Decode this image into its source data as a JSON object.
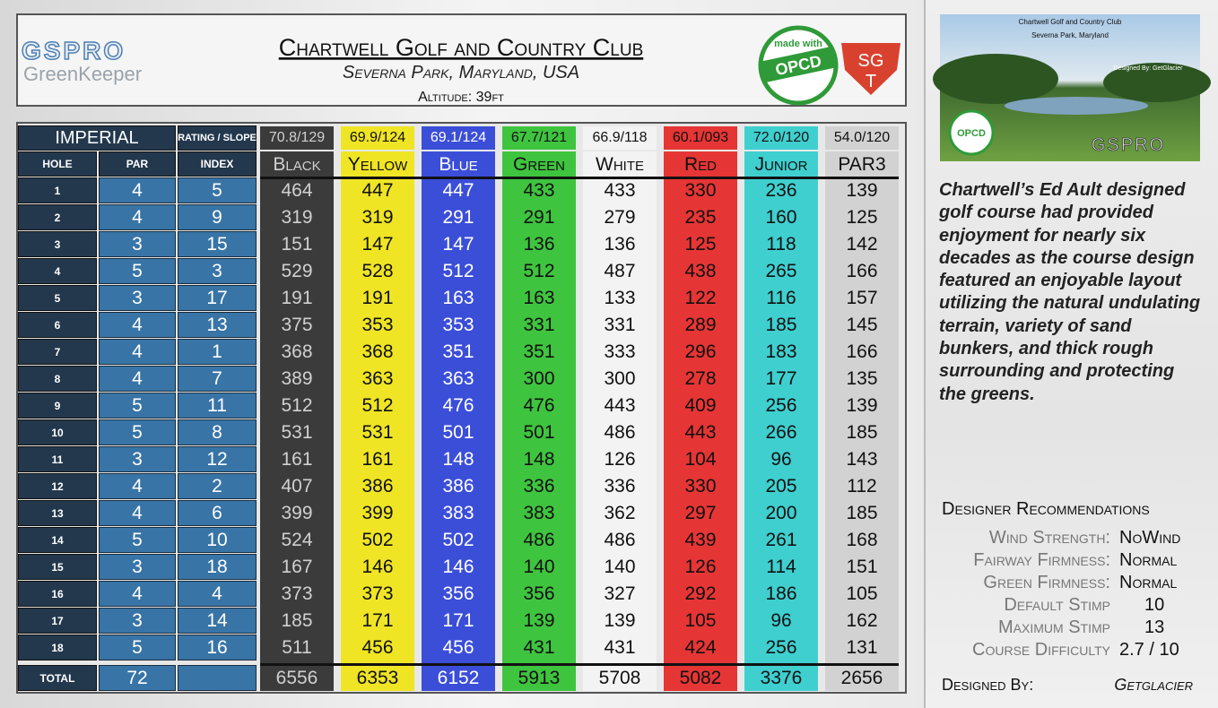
{
  "header": {
    "logo": "GSPRO",
    "logo_sub": "GreenKeeper",
    "title": "Chartwell Golf and Country Club",
    "subtitle": "Severna Park, Maryland, USA",
    "altitude": "Altitude: 39ft",
    "badge_top": "made with",
    "badge": "OPCD",
    "sgt_top": "SG",
    "sgt_bottom": "T"
  },
  "photo": {
    "title": "Chartwell Golf and Country Club",
    "subtitle": "Severna Park, Maryland",
    "credit": "Designed By: GetGlacier",
    "brand": "GSPRO",
    "badge": "OPCD"
  },
  "table": {
    "system": "IMPERIAL",
    "rating_label": "RATING / SLOPE",
    "hole_label": "HOLE",
    "par_label": "PAR",
    "index_label": "INDEX",
    "total_label": "TOTAL",
    "par_total": 72,
    "holes": [
      1,
      2,
      3,
      4,
      5,
      6,
      7,
      8,
      9,
      10,
      11,
      12,
      13,
      14,
      15,
      16,
      17,
      18
    ],
    "par": [
      4,
      4,
      3,
      5,
      3,
      4,
      4,
      4,
      5,
      5,
      3,
      4,
      4,
      5,
      3,
      4,
      3,
      5
    ],
    "index": [
      5,
      9,
      15,
      3,
      17,
      13,
      1,
      7,
      11,
      8,
      12,
      2,
      6,
      10,
      18,
      4,
      14,
      16
    ],
    "tees": [
      {
        "name": "Black",
        "rating": "70.8/129",
        "color": "#3b3b3b",
        "text": "#d0d0d0",
        "head": "#3b3b3b",
        "yards": [
          464,
          319,
          151,
          529,
          191,
          375,
          368,
          389,
          512,
          531,
          161,
          407,
          399,
          524,
          167,
          373,
          185,
          511
        ],
        "total": 6556
      },
      {
        "name": "Yellow",
        "rating": "69.9/124",
        "color": "#efe525",
        "text": "#111111",
        "head": "#efe525",
        "yards": [
          447,
          319,
          147,
          528,
          191,
          353,
          368,
          363,
          512,
          531,
          161,
          386,
          399,
          502,
          146,
          373,
          171,
          456
        ],
        "total": 6353
      },
      {
        "name": "Blue",
        "rating": "69.1/124",
        "color": "#3b4ed8",
        "text": "#ffffff",
        "head": "#3b4ed8",
        "yards": [
          447,
          291,
          147,
          512,
          163,
          353,
          351,
          363,
          476,
          501,
          148,
          386,
          383,
          502,
          146,
          356,
          171,
          456
        ],
        "total": 6152
      },
      {
        "name": "Green",
        "rating": "67.7/121",
        "color": "#3fc43f",
        "text": "#111111",
        "head": "#3fc43f",
        "yards": [
          433,
          291,
          136,
          512,
          163,
          331,
          351,
          300,
          476,
          501,
          148,
          336,
          383,
          486,
          140,
          356,
          139,
          431
        ],
        "total": 5913
      },
      {
        "name": "White",
        "rating": "66.9/118",
        "color": "#f3f3f3",
        "text": "#111111",
        "head": "#f3f3f3",
        "yards": [
          433,
          279,
          136,
          487,
          133,
          331,
          333,
          300,
          443,
          486,
          126,
          336,
          362,
          486,
          140,
          327,
          139,
          431
        ],
        "total": 5708
      },
      {
        "name": "Red",
        "rating": "60.1/093",
        "color": "#e63535",
        "text": "#111111",
        "head": "#e63535",
        "yards": [
          330,
          235,
          125,
          438,
          122,
          289,
          296,
          278,
          409,
          443,
          104,
          330,
          297,
          439,
          126,
          292,
          105,
          424
        ],
        "total": 5082
      },
      {
        "name": "Junior",
        "rating": "72.0/120",
        "color": "#3fcfcf",
        "text": "#111111",
        "head": "#3fcfcf",
        "yards": [
          236,
          160,
          118,
          265,
          116,
          185,
          183,
          177,
          256,
          266,
          96,
          205,
          200,
          261,
          114,
          186,
          96,
          256
        ],
        "total": 3376
      },
      {
        "name": "PAR3",
        "rating": "54.0/120",
        "color": "#d2d2d2",
        "text": "#111111",
        "head": "#d2d2d2",
        "yards": [
          139,
          125,
          142,
          166,
          157,
          145,
          166,
          135,
          139,
          185,
          143,
          112,
          185,
          168,
          151,
          105,
          162,
          131
        ],
        "total": 2656
      }
    ]
  },
  "description": "Chartwell’s Ed Ault designed golf course had provided enjoyment for nearly six decades as the course design featured an enjoyable layout utilizing the natural undulating terrain, variety of sand bunkers, and thick rough surrounding and protecting the greens.",
  "recommendations": {
    "title": "Designer Recommendations",
    "items": [
      {
        "label": "Wind Strength:",
        "value": "NoWind"
      },
      {
        "label": "Fairway Firmness:",
        "value": "Normal"
      },
      {
        "label": "Green Firmness:",
        "value": "Normal"
      },
      {
        "label": "Default Stimp",
        "value": 10
      },
      {
        "label": "Maximum Stimp",
        "value": 13
      },
      {
        "label": "Course Difficulty",
        "value": "2.7 / 10"
      }
    ],
    "designed_by_label": "Designed By:",
    "designed_by": "Getglacier"
  }
}
